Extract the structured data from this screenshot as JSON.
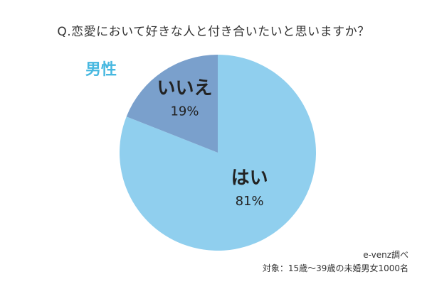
{
  "chart_data": {
    "type": "pie",
    "title": "Q.恋愛において好きな人と付き合いたいと思いますか？",
    "group_label": "男性",
    "slices": [
      {
        "label": "はい",
        "value": 81,
        "value_label": "81%",
        "color": "#90cfee"
      },
      {
        "label": "いいえ",
        "value": 19,
        "value_label": "19%",
        "color": "#7aa0cc"
      }
    ],
    "start": "12 o'clock",
    "direction": "clockwise",
    "legend": "none"
  },
  "footer": {
    "source": "e-venz調べ",
    "subjects": "対象：15歳～39歳の未婚男女1000名"
  }
}
